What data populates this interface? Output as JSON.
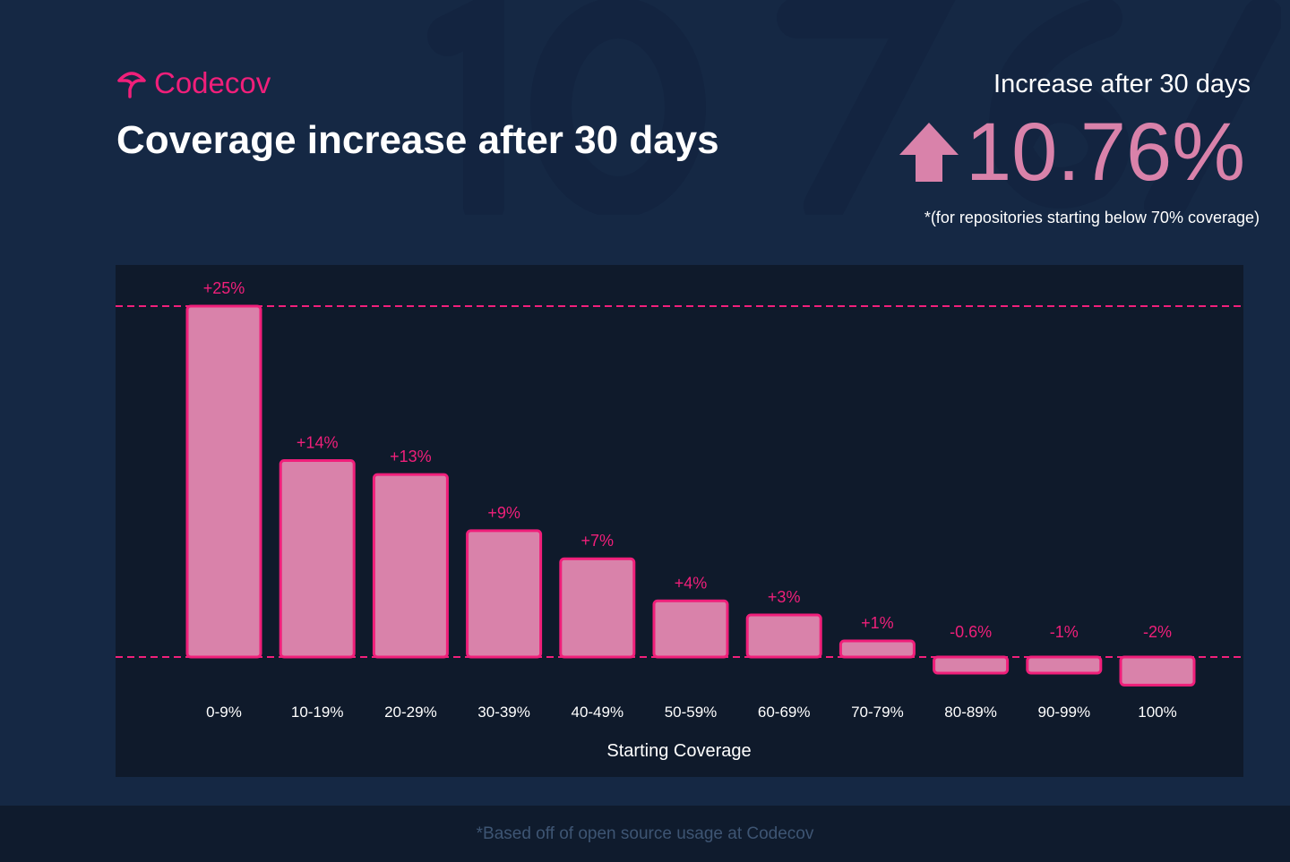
{
  "brand": {
    "name": "Codecov",
    "color": "#f01f7a"
  },
  "header": {
    "title": "Coverage increase after 30 days",
    "background_number": "10.76%"
  },
  "summary": {
    "label": "Increase after 30 days",
    "value": "10.76%",
    "icon": "arrow-up-icon",
    "note": "*(for repositories starting below 70% coverage)"
  },
  "footer": {
    "text": "*Based off of open source usage at Codecov"
  },
  "chart_data": {
    "type": "bar",
    "title": "",
    "xlabel": "Starting Coverage",
    "ylabel": "",
    "categories": [
      "0-9%",
      "10-19%",
      "20-29%",
      "30-39%",
      "40-49%",
      "50-59%",
      "60-69%",
      "70-79%",
      "80-89%",
      "90-99%",
      "100%"
    ],
    "values": [
      25,
      14,
      13,
      9,
      7,
      4,
      3,
      1,
      -0.6,
      -1,
      -2
    ],
    "data_labels": [
      "+25%",
      "+14%",
      "+13%",
      "+9%",
      "+7%",
      "+4%",
      "+3%",
      "+1%",
      "-0.6%",
      "-1%",
      "-2%"
    ],
    "reference_lines": [
      0,
      25
    ],
    "grid": false,
    "bar_color": "#d982aa",
    "bar_border": "#f01f7a"
  }
}
